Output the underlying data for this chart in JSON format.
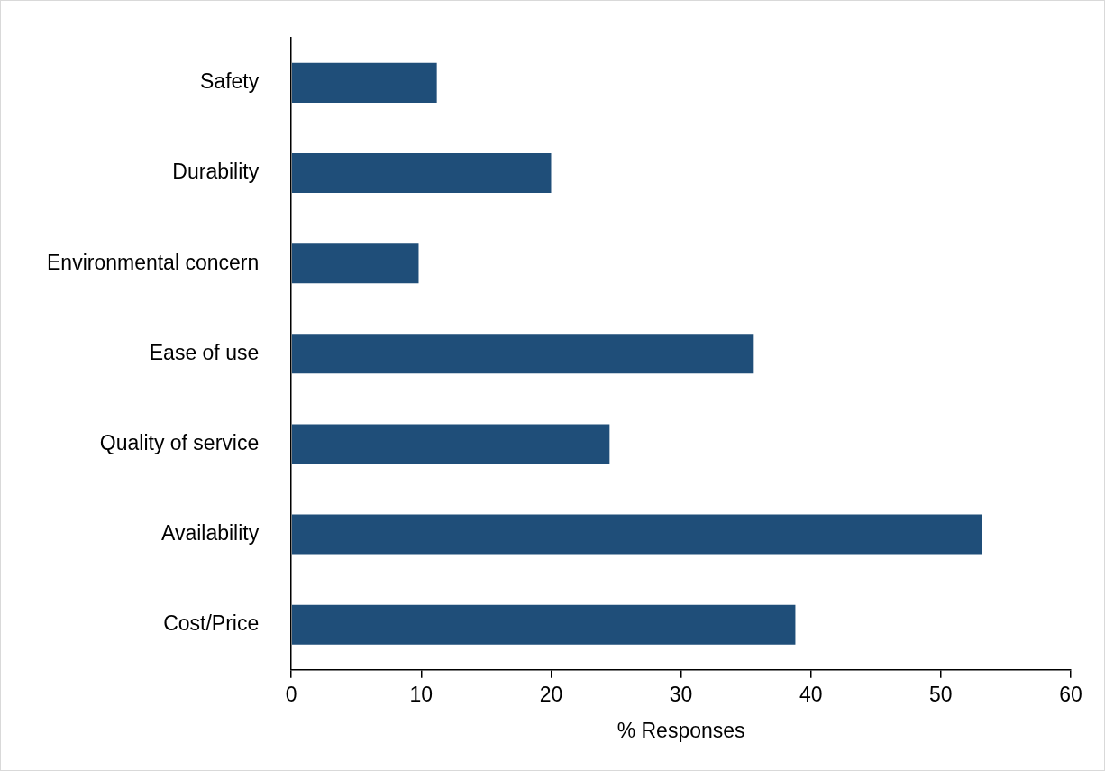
{
  "chart_data": {
    "type": "bar",
    "orientation": "horizontal",
    "xlabel": "% Responses",
    "categories": [
      "Safety",
      "Durability",
      "Environmental concern",
      "Ease of use",
      "Quality of service",
      "Availability",
      "Cost/Price"
    ],
    "values": [
      11.2,
      20.0,
      9.8,
      35.6,
      24.5,
      53.2,
      38.8
    ],
    "color": "#1f4e79",
    "xlim": [
      0,
      60
    ],
    "xticks": [
      0,
      10,
      20,
      30,
      40,
      50,
      60
    ],
    "grid": false,
    "legend": false
  }
}
